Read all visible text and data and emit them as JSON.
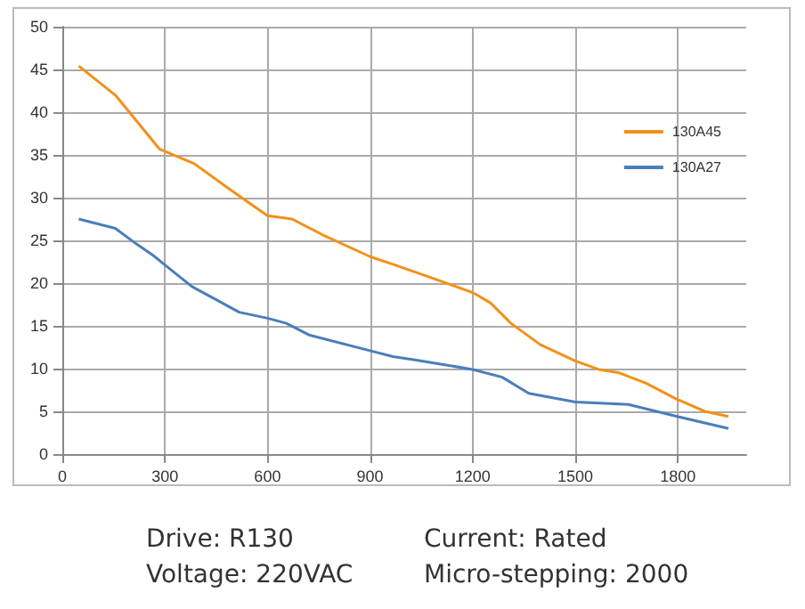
{
  "chart_data": {
    "type": "line",
    "series": [
      {
        "name": "130A45",
        "color": "#f39019",
        "x": [
          48,
          155,
          284,
          385,
          517,
          600,
          672,
          759,
          900,
          967,
          1053,
          1200,
          1252,
          1312,
          1398,
          1500,
          1569,
          1629,
          1707,
          1798,
          1879,
          1948
        ],
        "values": [
          45.4,
          42,
          35.7,
          34,
          30.2,
          27.9,
          27.5,
          25.7,
          23.1,
          22.2,
          21.0,
          18.9,
          17.7,
          15.3,
          12.8,
          10.9,
          9.9,
          9.5,
          8.3,
          6.4,
          5.0,
          4.4
        ]
      },
      {
        "name": "130A27",
        "color": "#4a7ebb",
        "x": [
          48,
          155,
          216,
          267,
          301,
          379,
          517,
          600,
          655,
          724,
          900,
          967,
          1036,
          1200,
          1286,
          1364,
          1500,
          1655,
          1798,
          1948
        ],
        "values": [
          27.5,
          26.4,
          24.6,
          23.2,
          22.1,
          19.6,
          16.6,
          15.9,
          15.3,
          13.9,
          12.1,
          11.4,
          11.0,
          9.9,
          9.0,
          7.1,
          6.1,
          5.8,
          4.4,
          3.0
        ]
      }
    ],
    "xlim": [
      0,
      2000
    ],
    "xticks": [
      0,
      300,
      600,
      900,
      1200,
      1500,
      1800
    ],
    "ylim": [
      0,
      50
    ],
    "yticks": [
      0,
      5,
      10,
      15,
      20,
      25,
      30,
      35,
      40,
      45,
      50
    ],
    "grid": true,
    "legend": "top right",
    "marker": "none",
    "line_style": "solid",
    "annotations": [
      "Drive: R130",
      "Current: Rated",
      "Voltage: 220VAC",
      "Micro-stepping: 2000"
    ]
  }
}
